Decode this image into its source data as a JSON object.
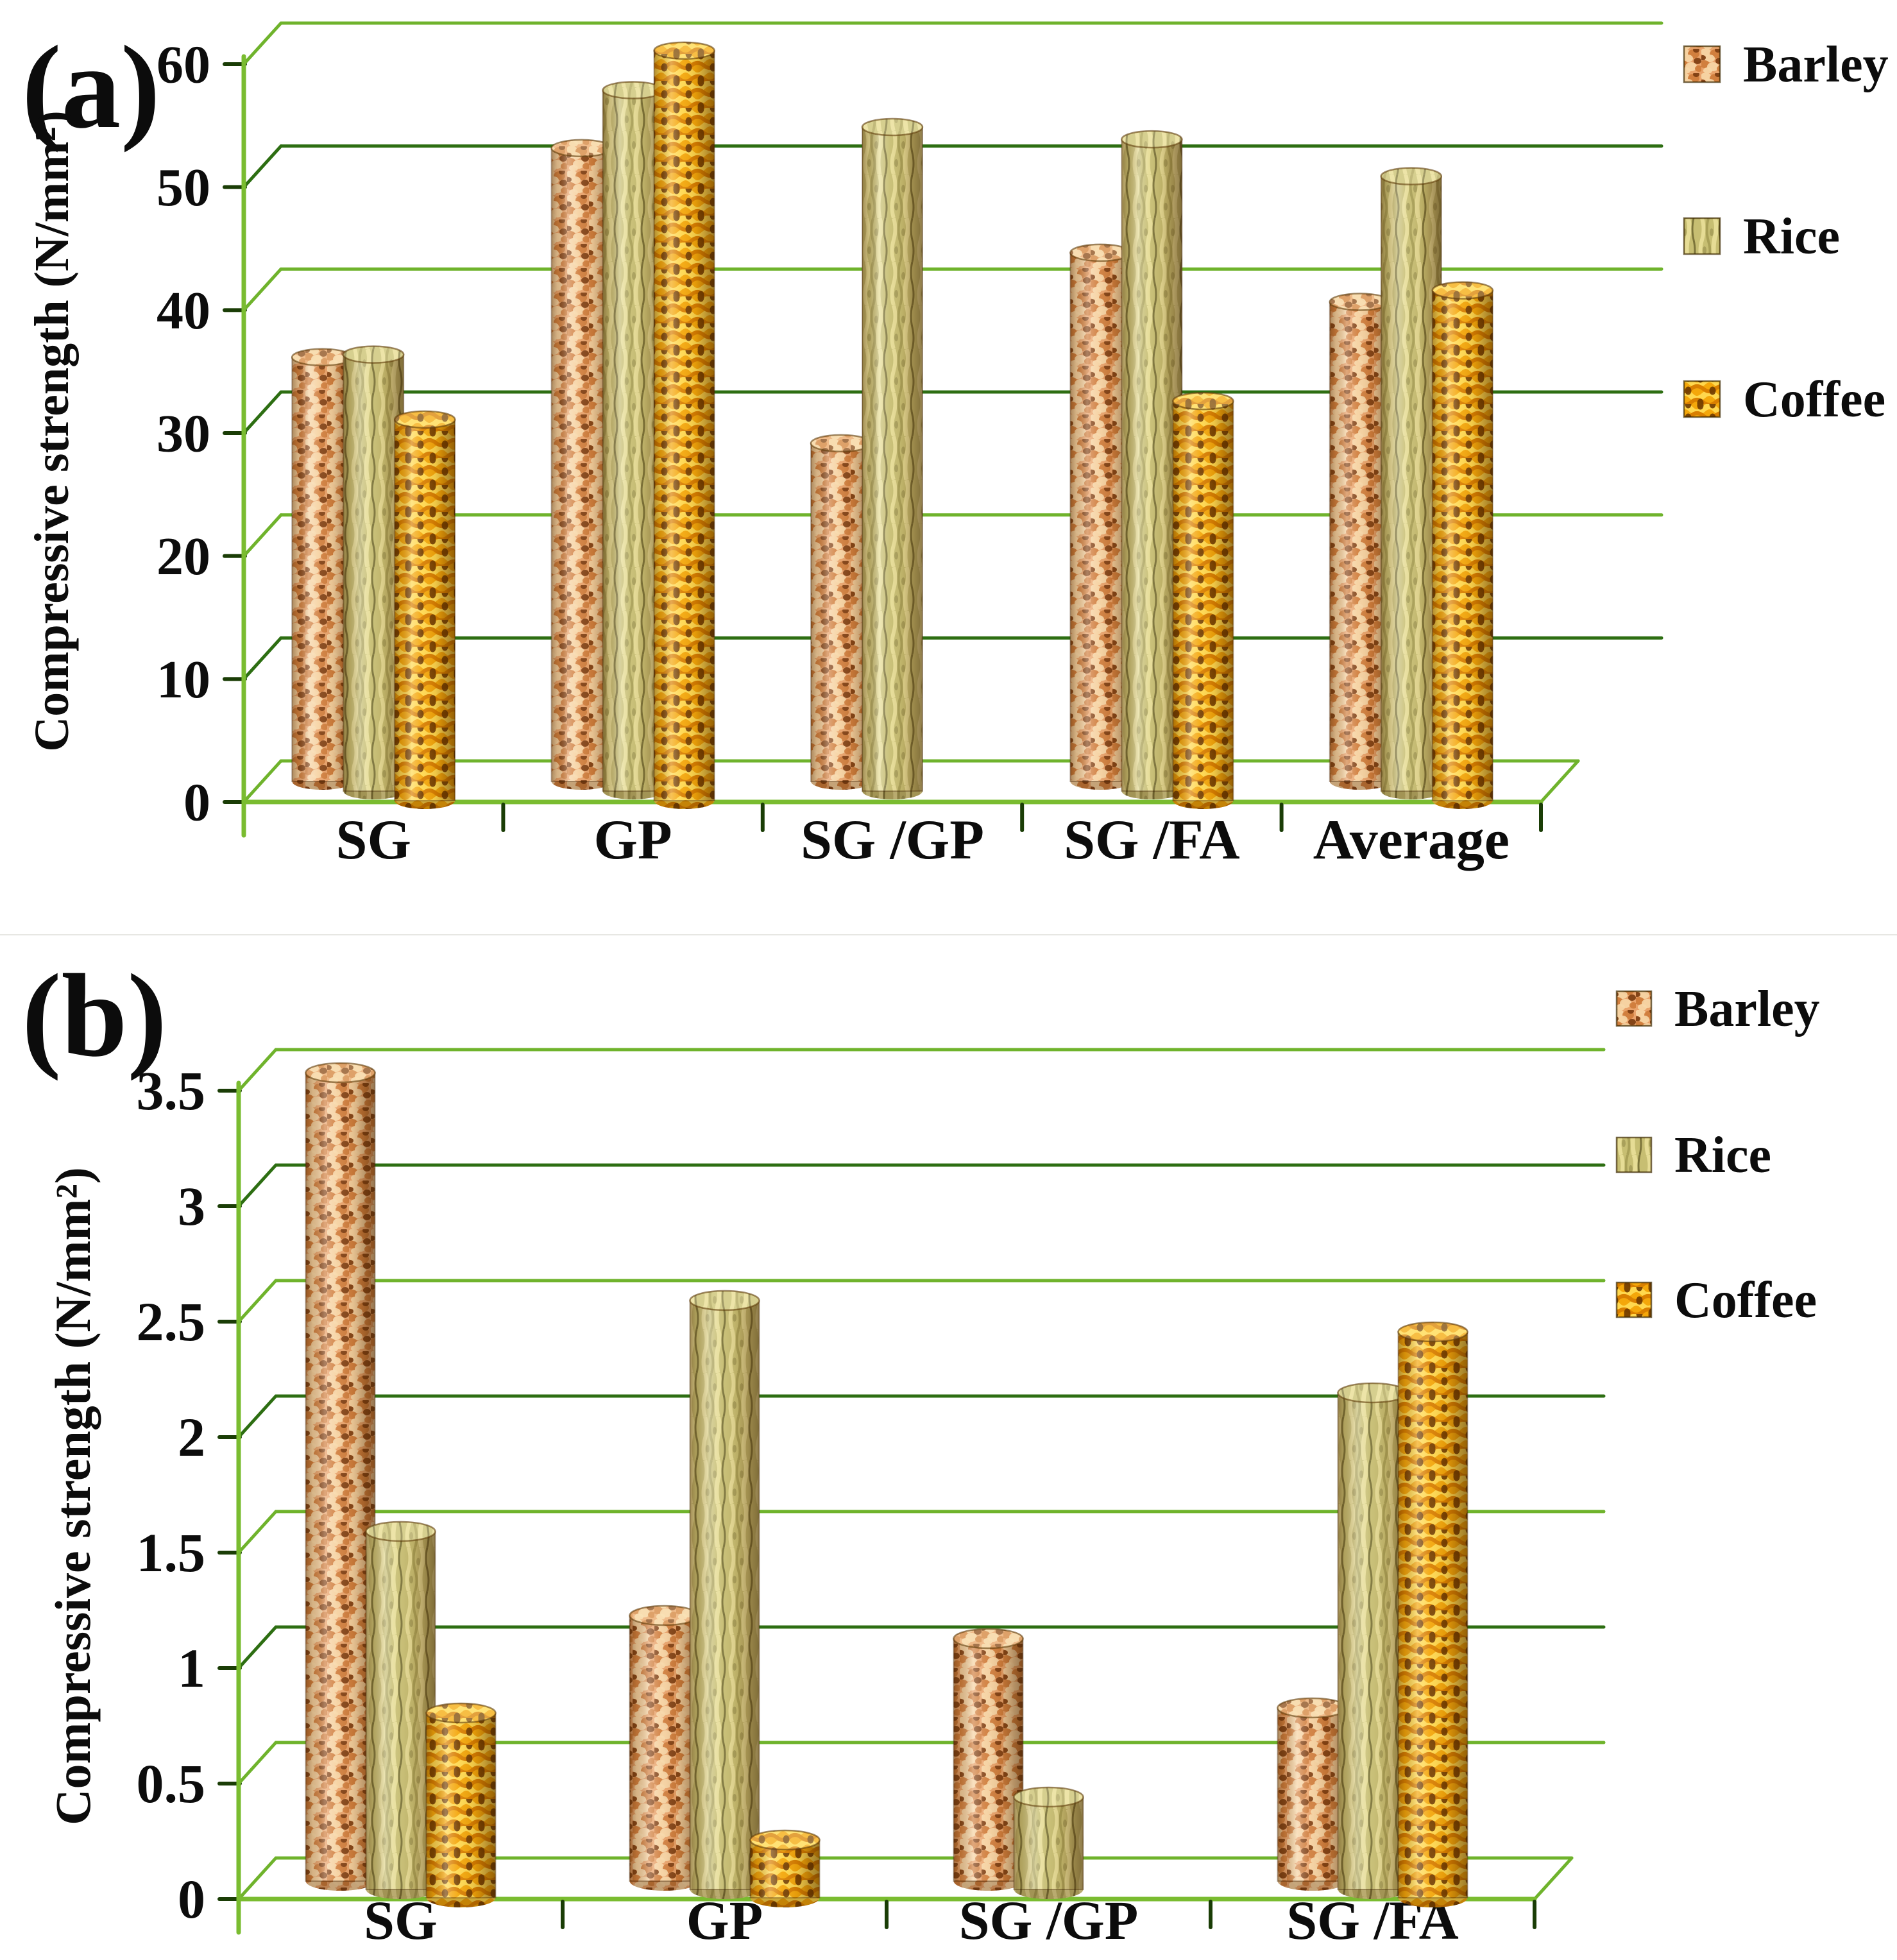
{
  "figure": {
    "background": "#ffffff",
    "divider_color": "#e7e7e3",
    "text_color": "#0c0c0c",
    "grid_light": "#6fb32c",
    "grid_dark": "#2d6e12",
    "axis_color": "#7abc30",
    "tick_color": "#1a3d06",
    "panel_labels": [
      "(a)",
      "(b)"
    ]
  },
  "series_styles": {
    "Barley": {
      "base": "#e9a36b",
      "light": "#f8d7a8",
      "mid": "#cf7b3a",
      "dark": "#7a3b10"
    },
    "Rice": {
      "base": "#c7be72",
      "light": "#ebe29b",
      "mid": "#a49b52",
      "dark": "#6f6730"
    },
    "Coffee": {
      "base": "#f4a70a",
      "light": "#ffd84e",
      "mid": "#d97f00",
      "dark": "#6e3a00"
    }
  },
  "chart_data": [
    {
      "type": "bar",
      "variant": "3d-cylinder",
      "panel_label": "(a)",
      "title": "",
      "xlabel": "",
      "ylabel": "Compressive strength (N/mm²)",
      "ylim": [
        0,
        60
      ],
      "ytick_step": 10,
      "ytick_labels": [
        "0",
        "10",
        "20",
        "30",
        "40",
        "50",
        "60"
      ],
      "grid": true,
      "legend_position": "right",
      "legend_entries": [
        "Barley",
        "Rice",
        "Coffee"
      ],
      "categories": [
        "SG",
        "GP",
        "SG /GP",
        "SG /FA",
        "Average"
      ],
      "series": [
        {
          "name": "Barley",
          "values": [
            34.5,
            51.5,
            27.5,
            43,
            39
          ]
        },
        {
          "name": "Rice",
          "values": [
            35.5,
            57,
            54,
            53,
            50
          ]
        },
        {
          "name": "Coffee",
          "values": [
            31,
            61,
            null,
            32.5,
            41.5
          ]
        }
      ]
    },
    {
      "type": "bar",
      "variant": "3d-cylinder",
      "panel_label": "(b)",
      "title": "",
      "xlabel": "",
      "ylabel": "Compressive strength (N/mm²)",
      "ylim": [
        0,
        3.5
      ],
      "ytick_step": 0.5,
      "ytick_labels": [
        "0",
        "0.5",
        "1",
        "1.5",
        "2",
        "2.5",
        "3",
        "3.5"
      ],
      "grid": true,
      "legend_position": "right",
      "legend_entries": [
        "Barley",
        "Rice",
        "Coffee"
      ],
      "categories": [
        "SG",
        "GP",
        "SG /GP",
        "SG /FA"
      ],
      "series": [
        {
          "name": "Barley",
          "values": [
            3.5,
            1.15,
            1.05,
            0.75
          ]
        },
        {
          "name": "Rice",
          "values": [
            1.55,
            2.55,
            0.4,
            2.15
          ]
        },
        {
          "name": "Coffee",
          "values": [
            0.8,
            0.25,
            null,
            2.45
          ]
        }
      ]
    }
  ]
}
